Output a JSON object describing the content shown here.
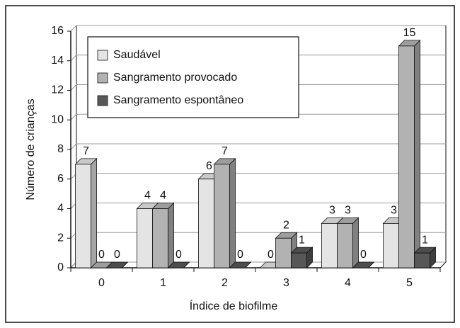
{
  "chart_data": {
    "type": "bar3d",
    "xlabel": "Índice de biofilme",
    "ylabel": "Número de crianças",
    "categories": [
      "0",
      "1",
      "2",
      "3",
      "4",
      "5"
    ],
    "series": [
      {
        "name": "Saudável",
        "color": "#e4e4e4",
        "values": [
          7,
          4,
          6,
          0,
          3,
          3
        ]
      },
      {
        "name": "Sangramento provocado",
        "color": "#b2b2b2",
        "values": [
          0,
          4,
          7,
          2,
          3,
          15
        ]
      },
      {
        "name": "Sangramento espontâneo",
        "color": "#575757",
        "values": [
          0,
          0,
          0,
          1,
          0,
          1
        ]
      }
    ],
    "ylim": [
      0,
      16
    ],
    "yticks": [
      0,
      2,
      4,
      6,
      8,
      10,
      12,
      14,
      16
    ],
    "grid": true,
    "legend": "upper left"
  }
}
